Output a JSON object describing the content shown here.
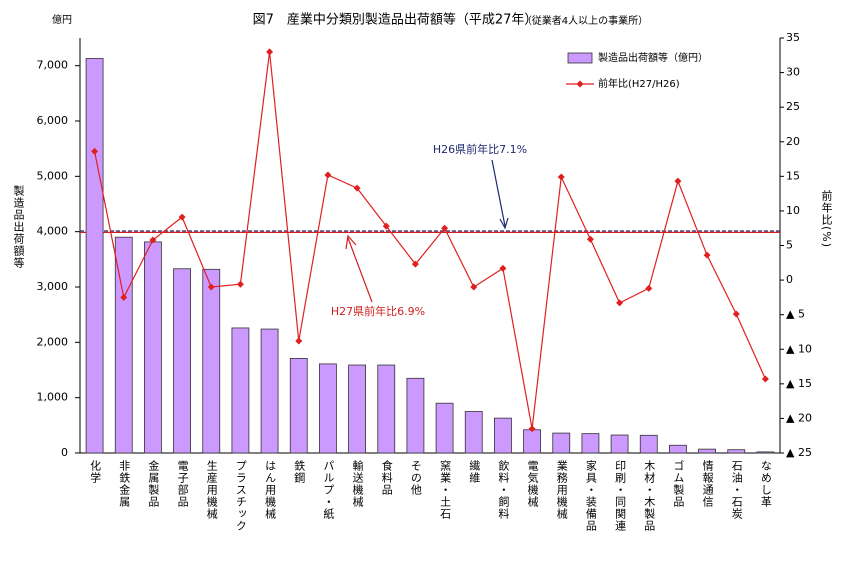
{
  "chart_data": {
    "type": "bar-line",
    "title": "図7　産業中分類別製造品出荷額等（平成27年）",
    "subtitle": "（従業者4人以上の事業所）",
    "y_unit": "億円",
    "y_label": "製造品出荷額等",
    "y2_label": "前年比(%)",
    "legend": "upper right",
    "categories": [
      "化学",
      "非鉄金属",
      "金属製品",
      "電子部品",
      "生産用機械",
      "プラスチック",
      "はん用機械",
      "鉄鋼",
      "パルプ・紙",
      "輸送機械",
      "食料品",
      "その他",
      "窯業・土石",
      "繊維",
      "飲料・飼料",
      "電気機械",
      "業務用機械",
      "家具・装備品",
      "印刷・同関連",
      "木材・木製品",
      "ゴム製品",
      "情報通信",
      "石油・石炭",
      "なめし革"
    ],
    "series": [
      {
        "name": "製造品出荷額等（億円）",
        "type": "bar",
        "color": "#cc99ff",
        "axis": "y",
        "values": [
          7130,
          3900,
          3815,
          3330,
          3320,
          2260,
          2240,
          1710,
          1610,
          1590,
          1590,
          1350,
          900,
          750,
          630,
          420,
          360,
          350,
          325,
          320,
          140,
          70,
          60,
          20
        ]
      },
      {
        "name": "前年比(H27/H26)",
        "type": "line",
        "color": "#e02020",
        "axis": "y2",
        "values": [
          18.6,
          -2.5,
          5.8,
          9.1,
          -1.0,
          -0.6,
          33.0,
          -8.8,
          15.2,
          13.3,
          7.8,
          2.3,
          7.5,
          -1.0,
          1.7,
          -21.5,
          14.9,
          5.9,
          -3.3,
          -1.2,
          14.3,
          3.6,
          -4.9,
          -14.3
        ]
      }
    ],
    "reference_lines": [
      {
        "label": "H26県前年比7.1%",
        "value": 7.1,
        "color": "#1f2a6e",
        "axis": "y2",
        "style": "dashed"
      },
      {
        "label": "H27県前年比6.9%",
        "value": 6.9,
        "color": "#d02020",
        "axis": "y2",
        "style": "solid"
      }
    ],
    "ylim": [
      0,
      7500
    ],
    "yticks": [
      0,
      {
        "value": 1000,
        "label": "1,000"
      },
      {
        "value": 2000,
        "label": "2,000"
      },
      {
        "value": 3000,
        "label": "3,000"
      },
      {
        "value": 4000,
        "label": "4,000"
      },
      {
        "value": 5000,
        "label": "5,000"
      },
      {
        "value": 6000,
        "label": "6,000"
      },
      {
        "value": 7000,
        "label": "7,000"
      }
    ],
    "y2lim": [
      -25,
      35
    ],
    "y2ticks": [
      35,
      30,
      25,
      20,
      15,
      10,
      5,
      0,
      {
        "value": -5,
        "label": "▲ 5"
      },
      {
        "value": -10,
        "label": "▲ 10"
      },
      {
        "value": -15,
        "label": "▲ 15"
      },
      {
        "value": -20,
        "label": "▲ 20"
      },
      {
        "value": -25,
        "label": "▲ 25"
      }
    ]
  }
}
